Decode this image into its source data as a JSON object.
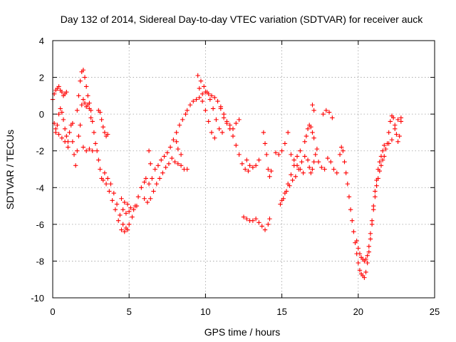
{
  "chart_data": {
    "type": "scatter",
    "title": "Day 132 of 2014, Sidereal Day-to-day VTEC variation (SDTVAR) for receiver auck",
    "xlabel": "GPS time / hours",
    "ylabel": "SDTVAR / TECUs",
    "xlim": [
      0,
      25
    ],
    "ylim": [
      -10,
      4
    ],
    "xticks": [
      "0",
      "5",
      "10",
      "15",
      "20",
      "25"
    ],
    "yticks": [
      "-10",
      "-8",
      "-6",
      "-4",
      "-2",
      "0",
      "2",
      "4"
    ],
    "grid": true,
    "marker": "+",
    "color": "#ff0000",
    "series": [
      {
        "name": "SDTVAR",
        "points": [
          [
            0.0,
            0.8
          ],
          [
            0.1,
            1.1
          ],
          [
            0.2,
            1.3
          ],
          [
            0.3,
            1.4
          ],
          [
            0.4,
            1.5
          ],
          [
            0.5,
            1.3
          ],
          [
            0.6,
            1.2
          ],
          [
            0.7,
            1.0
          ],
          [
            0.8,
            1.1
          ],
          [
            0.9,
            1.2
          ],
          [
            0.1,
            -0.5
          ],
          [
            0.2,
            -0.8
          ],
          [
            0.3,
            -0.6
          ],
          [
            0.4,
            0.0
          ],
          [
            0.5,
            0.3
          ],
          [
            0.6,
            0.1
          ],
          [
            0.7,
            -0.3
          ],
          [
            0.8,
            -0.8
          ],
          [
            0.9,
            -1.2
          ],
          [
            1.0,
            -1.5
          ],
          [
            1.1,
            -1.0
          ],
          [
            1.2,
            -0.6
          ],
          [
            1.3,
            -0.5
          ],
          [
            0.2,
            -1.0
          ],
          [
            0.4,
            -1.1
          ],
          [
            0.6,
            -1.3
          ],
          [
            0.8,
            -1.5
          ],
          [
            1.0,
            -1.8
          ],
          [
            1.3,
            -1.5
          ],
          [
            1.4,
            -2.2
          ],
          [
            1.5,
            -2.8
          ],
          [
            1.6,
            -2.0
          ],
          [
            1.7,
            -1.2
          ],
          [
            1.8,
            -0.6
          ],
          [
            1.6,
            0.2
          ],
          [
            1.7,
            1.0
          ],
          [
            1.8,
            1.8
          ],
          [
            1.9,
            2.3
          ],
          [
            2.0,
            2.4
          ],
          [
            2.1,
            2.0
          ],
          [
            2.2,
            1.5
          ],
          [
            2.3,
            1.0
          ],
          [
            2.4,
            0.6
          ],
          [
            2.5,
            0.2
          ],
          [
            2.6,
            -0.4
          ],
          [
            2.7,
            -1.0
          ],
          [
            2.8,
            -1.6
          ],
          [
            1.9,
            0.5
          ],
          [
            2.0,
            0.8
          ],
          [
            2.1,
            0.6
          ],
          [
            2.2,
            0.4
          ],
          [
            2.3,
            0.5
          ],
          [
            2.4,
            0.3
          ],
          [
            2.5,
            -0.2
          ],
          [
            2.0,
            -1.8
          ],
          [
            2.2,
            -2.0
          ],
          [
            2.4,
            -1.9
          ],
          [
            2.6,
            -2.0
          ],
          [
            2.9,
            -2.0
          ],
          [
            3.0,
            -2.5
          ],
          [
            3.1,
            -3.0
          ],
          [
            3.2,
            -3.5
          ],
          [
            3.3,
            -3.6
          ],
          [
            3.0,
            0.2
          ],
          [
            3.1,
            0.1
          ],
          [
            3.2,
            -0.3
          ],
          [
            3.3,
            -0.7
          ],
          [
            3.4,
            -1.0
          ],
          [
            3.5,
            -1.2
          ],
          [
            3.6,
            -1.1
          ],
          [
            3.4,
            -3.2
          ],
          [
            3.6,
            -3.5
          ],
          [
            3.8,
            -3.8
          ],
          [
            4.0,
            -4.3
          ],
          [
            4.2,
            -4.9
          ],
          [
            4.4,
            -5.5
          ],
          [
            4.6,
            -6.0
          ],
          [
            4.8,
            -6.2
          ],
          [
            5.0,
            -6.0
          ],
          [
            5.2,
            -5.6
          ],
          [
            5.4,
            -5.0
          ],
          [
            5.6,
            -4.5
          ],
          [
            5.8,
            -4.0
          ],
          [
            6.0,
            -3.7
          ],
          [
            3.5,
            -3.8
          ],
          [
            3.7,
            -4.2
          ],
          [
            3.9,
            -4.7
          ],
          [
            4.1,
            -5.2
          ],
          [
            4.3,
            -5.8
          ],
          [
            4.5,
            -6.3
          ],
          [
            4.7,
            -6.4
          ],
          [
            4.9,
            -6.3
          ],
          [
            4.5,
            -4.6
          ],
          [
            4.7,
            -4.8
          ],
          [
            4.9,
            -4.9
          ],
          [
            5.1,
            -5.1
          ],
          [
            5.3,
            -5.2
          ],
          [
            5.5,
            -5.0
          ],
          [
            4.6,
            -5.2
          ],
          [
            4.8,
            -5.4
          ],
          [
            5.0,
            -5.3
          ],
          [
            6.0,
            -4.6
          ],
          [
            6.2,
            -4.8
          ],
          [
            6.4,
            -4.6
          ],
          [
            6.6,
            -4.2
          ],
          [
            6.8,
            -3.8
          ],
          [
            7.0,
            -3.5
          ],
          [
            7.2,
            -3.2
          ],
          [
            7.4,
            -2.9
          ],
          [
            7.6,
            -2.7
          ],
          [
            6.1,
            -3.5
          ],
          [
            6.3,
            -3.8
          ],
          [
            6.5,
            -3.5
          ],
          [
            6.7,
            -3.0
          ],
          [
            6.9,
            -2.8
          ],
          [
            7.1,
            -2.5
          ],
          [
            7.3,
            -2.3
          ],
          [
            7.5,
            -2.1
          ],
          [
            7.7,
            -1.8
          ],
          [
            7.9,
            -1.4
          ],
          [
            8.1,
            -1.0
          ],
          [
            8.3,
            -0.6
          ],
          [
            8.5,
            -0.3
          ],
          [
            8.7,
            0.0
          ],
          [
            6.3,
            -2.0
          ],
          [
            6.4,
            -2.7
          ],
          [
            7.8,
            -2.4
          ],
          [
            8.0,
            -2.6
          ],
          [
            8.2,
            -2.7
          ],
          [
            8.4,
            -2.8
          ],
          [
            8.6,
            -3.0
          ],
          [
            8.8,
            -3.0
          ],
          [
            8.1,
            -1.5
          ],
          [
            8.2,
            -1.9
          ],
          [
            8.4,
            -2.2
          ],
          [
            8.8,
            0.2
          ],
          [
            9.0,
            0.5
          ],
          [
            9.2,
            0.7
          ],
          [
            9.4,
            0.8
          ],
          [
            9.6,
            0.9
          ],
          [
            9.8,
            1.1
          ],
          [
            10.0,
            1.2
          ],
          [
            10.2,
            1.1
          ],
          [
            10.4,
            1.0
          ],
          [
            10.6,
            0.9
          ],
          [
            10.8,
            0.7
          ],
          [
            11.0,
            0.3
          ],
          [
            11.2,
            0.0
          ],
          [
            11.4,
            -0.4
          ],
          [
            11.6,
            -0.8
          ],
          [
            11.8,
            -1.2
          ],
          [
            12.0,
            -1.7
          ],
          [
            12.2,
            -2.2
          ],
          [
            12.4,
            -2.7
          ],
          [
            12.6,
            -3.0
          ],
          [
            12.8,
            -3.1
          ],
          [
            9.5,
            2.1
          ],
          [
            9.7,
            1.8
          ],
          [
            9.9,
            1.5
          ],
          [
            10.1,
            1.2
          ],
          [
            10.3,
            0.8
          ],
          [
            10.5,
            0.3
          ],
          [
            10.7,
            -0.3
          ],
          [
            10.9,
            -0.8
          ],
          [
            11.1,
            -1.0
          ],
          [
            9.6,
            1.4
          ],
          [
            9.8,
            0.7
          ],
          [
            10.0,
            0.2
          ],
          [
            10.2,
            -0.4
          ],
          [
            10.4,
            -1.0
          ],
          [
            10.6,
            -1.3
          ],
          [
            11.0,
            0.4
          ],
          [
            11.2,
            -0.2
          ],
          [
            11.4,
            -0.5
          ],
          [
            11.6,
            -0.6
          ],
          [
            11.8,
            -0.8
          ],
          [
            12.0,
            -0.5
          ],
          [
            12.2,
            -0.3
          ],
          [
            12.7,
            -2.5
          ],
          [
            12.9,
            -2.8
          ],
          [
            13.1,
            -2.9
          ],
          [
            13.3,
            -2.8
          ],
          [
            13.5,
            -2.5
          ],
          [
            12.5,
            -5.6
          ],
          [
            12.7,
            -5.7
          ],
          [
            12.9,
            -5.8
          ],
          [
            13.1,
            -5.8
          ],
          [
            13.3,
            -5.7
          ],
          [
            13.5,
            -5.9
          ],
          [
            13.7,
            -6.1
          ],
          [
            13.9,
            -6.3
          ],
          [
            14.1,
            -6.0
          ],
          [
            14.2,
            -5.7
          ],
          [
            13.8,
            -1.0
          ],
          [
            13.9,
            -1.6
          ],
          [
            14.0,
            -2.2
          ],
          [
            14.1,
            -3.0
          ],
          [
            14.2,
            -3.4
          ],
          [
            14.3,
            -3.1
          ],
          [
            14.6,
            -2.1
          ],
          [
            14.8,
            -2.2
          ],
          [
            15.0,
            -2.0
          ],
          [
            15.2,
            -1.6
          ],
          [
            15.4,
            -1.0
          ],
          [
            14.9,
            -4.9
          ],
          [
            15.1,
            -4.6
          ],
          [
            15.3,
            -4.2
          ],
          [
            15.5,
            -3.9
          ],
          [
            15.7,
            -3.6
          ],
          [
            15.9,
            -3.4
          ],
          [
            16.1,
            -3.0
          ],
          [
            16.3,
            -2.6
          ],
          [
            16.5,
            -2.3
          ],
          [
            15.0,
            -4.7
          ],
          [
            15.2,
            -4.3
          ],
          [
            15.4,
            -3.8
          ],
          [
            15.6,
            -3.3
          ],
          [
            15.8,
            -2.8
          ],
          [
            16.0,
            -2.3
          ],
          [
            16.2,
            -2.0
          ],
          [
            15.6,
            -2.2
          ],
          [
            15.8,
            -2.5
          ],
          [
            16.0,
            -2.8
          ],
          [
            16.2,
            -3.0
          ],
          [
            16.4,
            -3.2
          ],
          [
            16.5,
            -1.5
          ],
          [
            16.6,
            -1.2
          ],
          [
            16.7,
            -0.8
          ],
          [
            16.8,
            -0.6
          ],
          [
            16.9,
            -0.7
          ],
          [
            17.0,
            -1.0
          ],
          [
            17.1,
            -1.3
          ],
          [
            16.7,
            -2.5
          ],
          [
            16.8,
            -2.9
          ],
          [
            16.9,
            -3.2
          ],
          [
            17.0,
            -3.0
          ],
          [
            17.1,
            -2.6
          ],
          [
            17.2,
            -2.2
          ],
          [
            17.3,
            -1.9
          ],
          [
            17.0,
            0.5
          ],
          [
            17.1,
            0.2
          ],
          [
            17.4,
            -2.6
          ],
          [
            17.6,
            -2.9
          ],
          [
            17.8,
            -3.0
          ],
          [
            17.7,
            0.0
          ],
          [
            17.9,
            0.2
          ],
          [
            18.1,
            0.1
          ],
          [
            18.3,
            -0.2
          ],
          [
            18.0,
            -2.4
          ],
          [
            18.2,
            -2.6
          ],
          [
            18.4,
            -3.0
          ],
          [
            18.6,
            -3.2
          ],
          [
            18.8,
            -2.2
          ],
          [
            18.9,
            -1.8
          ],
          [
            19.0,
            -2.0
          ],
          [
            19.1,
            -2.6
          ],
          [
            19.2,
            -3.2
          ],
          [
            19.3,
            -3.8
          ],
          [
            19.4,
            -4.5
          ],
          [
            19.5,
            -5.2
          ],
          [
            19.6,
            -5.8
          ],
          [
            19.7,
            -6.4
          ],
          [
            19.8,
            -7.0
          ],
          [
            19.9,
            -7.6
          ],
          [
            20.0,
            -8.1
          ],
          [
            20.1,
            -8.5
          ],
          [
            20.2,
            -8.7
          ],
          [
            20.3,
            -8.8
          ],
          [
            20.4,
            -8.9
          ],
          [
            19.9,
            -6.9
          ],
          [
            20.0,
            -7.3
          ],
          [
            20.1,
            -7.6
          ],
          [
            20.2,
            -7.8
          ],
          [
            20.3,
            -7.9
          ],
          [
            20.4,
            -8.0
          ],
          [
            20.5,
            -7.9
          ],
          [
            20.6,
            -7.7
          ],
          [
            20.5,
            -8.6
          ],
          [
            20.6,
            -8.1
          ],
          [
            20.7,
            -7.5
          ],
          [
            20.8,
            -6.8
          ],
          [
            20.9,
            -6.0
          ],
          [
            21.0,
            -5.2
          ],
          [
            21.1,
            -4.5
          ],
          [
            21.2,
            -3.9
          ],
          [
            21.3,
            -3.5
          ],
          [
            21.4,
            -3.1
          ],
          [
            21.5,
            -2.8
          ],
          [
            21.6,
            -2.5
          ],
          [
            20.7,
            -7.2
          ],
          [
            20.8,
            -6.5
          ],
          [
            20.9,
            -5.8
          ],
          [
            21.0,
            -5.0
          ],
          [
            21.1,
            -4.2
          ],
          [
            21.2,
            -3.6
          ],
          [
            21.3,
            -3.0
          ],
          [
            21.4,
            -2.6
          ],
          [
            21.5,
            -2.3
          ],
          [
            21.6,
            -2.0
          ],
          [
            21.7,
            -1.7
          ],
          [
            21.7,
            -2.3
          ],
          [
            21.8,
            -1.9
          ],
          [
            21.9,
            -1.6
          ],
          [
            22.0,
            -1.0
          ],
          [
            22.1,
            -0.4
          ],
          [
            22.2,
            -0.1
          ],
          [
            22.3,
            -0.2
          ],
          [
            22.4,
            -0.6
          ],
          [
            22.5,
            -1.1
          ],
          [
            22.6,
            -1.5
          ],
          [
            22.7,
            -1.2
          ],
          [
            22.8,
            -0.4
          ],
          [
            22.0,
            -1.6
          ],
          [
            22.2,
            -1.4
          ],
          [
            22.4,
            -0.8
          ],
          [
            22.6,
            -0.3
          ],
          [
            22.8,
            -0.2
          ]
        ]
      }
    ]
  }
}
